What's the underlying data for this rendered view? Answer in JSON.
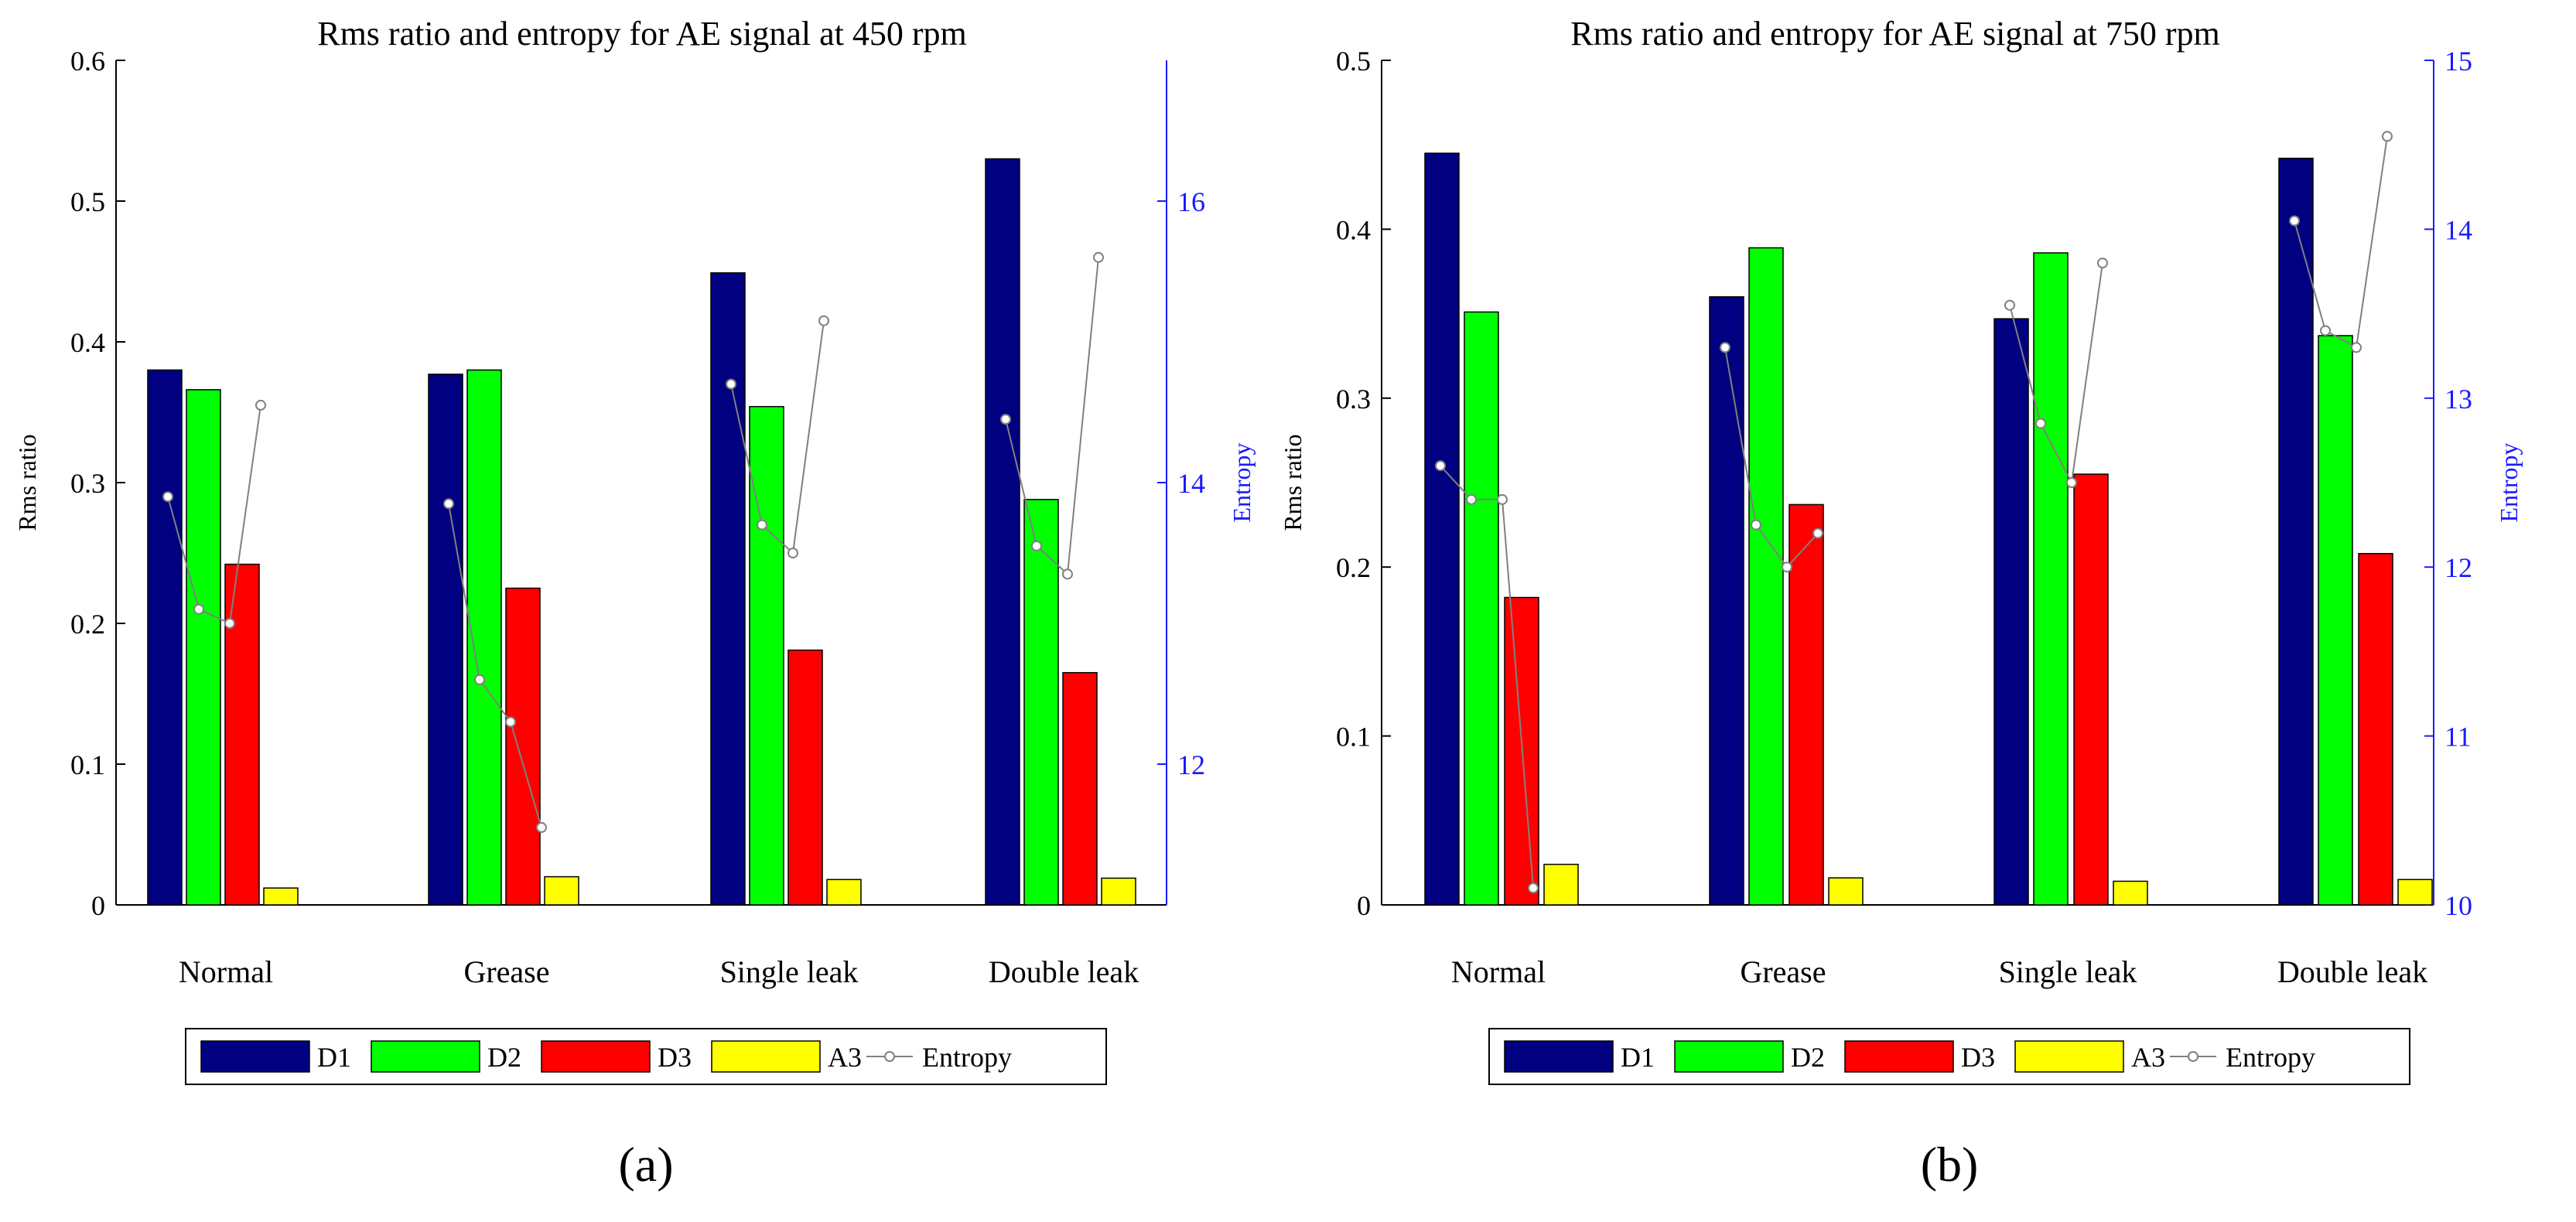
{
  "colors": {
    "D1": "#000080",
    "D2": "#00ff00",
    "D3": "#ff0000",
    "A3": "#ffff00",
    "entropy_line": "#808080",
    "entropy_axis": "#1a1aff",
    "axis": "#000000"
  },
  "legend": {
    "entries": [
      "D1",
      "D2",
      "D3",
      "A3",
      "Entropy"
    ]
  },
  "chart_data": [
    {
      "type": "bar",
      "panel_label": "(a)",
      "title": "Rms ratio and entropy for AE signal at 450 rpm",
      "xlabel": "",
      "ylabel": "Rms ratio",
      "ylabel_right": "Entropy",
      "ylim": [
        0,
        0.6
      ],
      "yticks": [
        "0",
        "0.1",
        "0.2",
        "0.3",
        "0.4",
        "0.5",
        "0.6"
      ],
      "ylim_right": [
        11,
        17
      ],
      "yticks_right": [
        "12",
        "14",
        "16"
      ],
      "categories": [
        "Normal",
        "Grease",
        "Single leak",
        "Double leak"
      ],
      "series": [
        {
          "name": "D1",
          "values": [
            0.38,
            0.377,
            0.449,
            0.53
          ]
        },
        {
          "name": "D2",
          "values": [
            0.366,
            0.38,
            0.354,
            0.288
          ]
        },
        {
          "name": "D3",
          "values": [
            0.242,
            0.225,
            0.181,
            0.165
          ]
        },
        {
          "name": "A3",
          "values": [
            0.012,
            0.02,
            0.018,
            0.019
          ]
        }
      ],
      "entropy": {
        "name": "Entropy",
        "values": [
          [
            13.9,
            13.1,
            13.0,
            14.55
          ],
          [
            13.85,
            12.6,
            12.3,
            11.55
          ],
          [
            14.7,
            13.7,
            13.5,
            15.15
          ],
          [
            14.45,
            13.55,
            13.35,
            15.6
          ]
        ]
      }
    },
    {
      "type": "bar",
      "panel_label": "(b)",
      "title": "Rms ratio and entropy for AE signal at 750 rpm",
      "xlabel": "",
      "ylabel": "Rms ratio",
      "ylabel_right": "Entropy",
      "ylim": [
        0,
        0.5
      ],
      "yticks": [
        "0",
        "0.1",
        "0.2",
        "0.3",
        "0.4",
        "0.5"
      ],
      "ylim_right": [
        10,
        15
      ],
      "yticks_right": [
        "10",
        "11",
        "12",
        "13",
        "14",
        "15"
      ],
      "categories": [
        "Normal",
        "Grease",
        "Single leak",
        "Double leak"
      ],
      "series": [
        {
          "name": "D1",
          "values": [
            0.445,
            0.36,
            0.347,
            0.442
          ]
        },
        {
          "name": "D2",
          "values": [
            0.351,
            0.389,
            0.386,
            0.337
          ]
        },
        {
          "name": "D3",
          "values": [
            0.182,
            0.237,
            0.255,
            0.208
          ]
        },
        {
          "name": "A3",
          "values": [
            0.024,
            0.016,
            0.014,
            0.015
          ]
        }
      ],
      "entropy": {
        "name": "Entropy",
        "values": [
          [
            12.6,
            12.4,
            12.4,
            10.1
          ],
          [
            13.3,
            12.25,
            12.0,
            12.2
          ],
          [
            13.55,
            12.85,
            12.5,
            13.8
          ],
          [
            14.05,
            13.4,
            13.3,
            14.55
          ]
        ]
      }
    }
  ]
}
